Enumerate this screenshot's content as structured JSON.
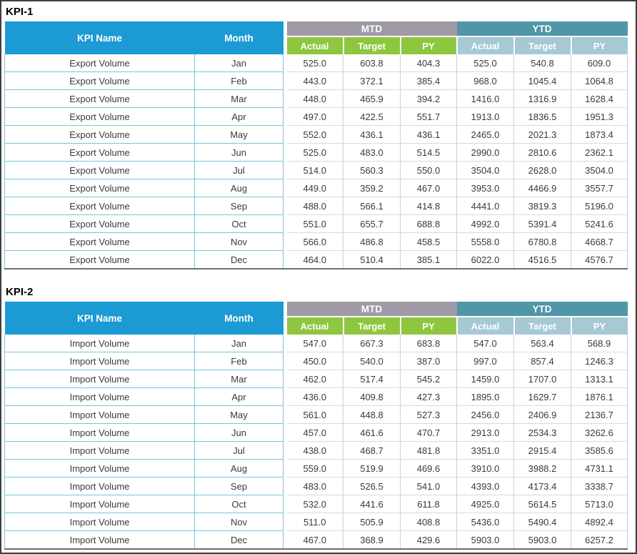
{
  "colors": {
    "header_blue": "#1b9ad3",
    "mtd_band": "#a099a6",
    "mtd_subheader_green": "#8ec63f",
    "ytd_band": "#4f96a8",
    "ytd_subheader_lightblue": "#a6c9d4",
    "grid_teal": "#74c6d9"
  },
  "tables": [
    {
      "title": "KPI-1",
      "header": {
        "kpi_name": "KPI Name",
        "month": "Month",
        "mtd": "MTD",
        "ytd": "YTD",
        "mtd_sub": [
          "Actual",
          "Target",
          "PY"
        ],
        "ytd_sub": [
          "Actual",
          "Target",
          "PY"
        ]
      },
      "rows": [
        {
          "kpi": "Export Volume",
          "month": "Jan",
          "mtd": [
            "525.0",
            "603.8",
            "404.3"
          ],
          "ytd": [
            "525.0",
            "540.8",
            "609.0"
          ]
        },
        {
          "kpi": "Export Volume",
          "month": "Feb",
          "mtd": [
            "443.0",
            "372.1",
            "385.4"
          ],
          "ytd": [
            "968.0",
            "1045.4",
            "1064.8"
          ]
        },
        {
          "kpi": "Export Volume",
          "month": "Mar",
          "mtd": [
            "448.0",
            "465.9",
            "394.2"
          ],
          "ytd": [
            "1416.0",
            "1316.9",
            "1628.4"
          ]
        },
        {
          "kpi": "Export Volume",
          "month": "Apr",
          "mtd": [
            "497.0",
            "422.5",
            "551.7"
          ],
          "ytd": [
            "1913.0",
            "1836.5",
            "1951.3"
          ]
        },
        {
          "kpi": "Export Volume",
          "month": "May",
          "mtd": [
            "552.0",
            "436.1",
            "436.1"
          ],
          "ytd": [
            "2465.0",
            "2021.3",
            "1873.4"
          ]
        },
        {
          "kpi": "Export Volume",
          "month": "Jun",
          "mtd": [
            "525.0",
            "483.0",
            "514.5"
          ],
          "ytd": [
            "2990.0",
            "2810.6",
            "2362.1"
          ]
        },
        {
          "kpi": "Export Volume",
          "month": "Jul",
          "mtd": [
            "514.0",
            "560.3",
            "550.0"
          ],
          "ytd": [
            "3504.0",
            "2628.0",
            "3504.0"
          ]
        },
        {
          "kpi": "Export Volume",
          "month": "Aug",
          "mtd": [
            "449.0",
            "359.2",
            "467.0"
          ],
          "ytd": [
            "3953.0",
            "4466.9",
            "3557.7"
          ]
        },
        {
          "kpi": "Export Volume",
          "month": "Sep",
          "mtd": [
            "488.0",
            "566.1",
            "414.8"
          ],
          "ytd": [
            "4441.0",
            "3819.3",
            "5196.0"
          ]
        },
        {
          "kpi": "Export Volume",
          "month": "Oct",
          "mtd": [
            "551.0",
            "655.7",
            "688.8"
          ],
          "ytd": [
            "4992.0",
            "5391.4",
            "5241.6"
          ]
        },
        {
          "kpi": "Export Volume",
          "month": "Nov",
          "mtd": [
            "566.0",
            "486.8",
            "458.5"
          ],
          "ytd": [
            "5558.0",
            "6780.8",
            "4668.7"
          ]
        },
        {
          "kpi": "Export Volume",
          "month": "Dec",
          "mtd": [
            "464.0",
            "510.4",
            "385.1"
          ],
          "ytd": [
            "6022.0",
            "4516.5",
            "4576.7"
          ]
        }
      ]
    },
    {
      "title": "KPI-2",
      "header": {
        "kpi_name": "KPI Name",
        "month": "Month",
        "mtd": "MTD",
        "ytd": "YTD",
        "mtd_sub": [
          "Actual",
          "Target",
          "PY"
        ],
        "ytd_sub": [
          "Actual",
          "Target",
          "PY"
        ]
      },
      "rows": [
        {
          "kpi": "Import Volume",
          "month": "Jan",
          "mtd": [
            "547.0",
            "667.3",
            "683.8"
          ],
          "ytd": [
            "547.0",
            "563.4",
            "568.9"
          ]
        },
        {
          "kpi": "Import Volume",
          "month": "Feb",
          "mtd": [
            "450.0",
            "540.0",
            "387.0"
          ],
          "ytd": [
            "997.0",
            "857.4",
            "1246.3"
          ]
        },
        {
          "kpi": "Import Volume",
          "month": "Mar",
          "mtd": [
            "462.0",
            "517.4",
            "545.2"
          ],
          "ytd": [
            "1459.0",
            "1707.0",
            "1313.1"
          ]
        },
        {
          "kpi": "Import Volume",
          "month": "Apr",
          "mtd": [
            "436.0",
            "409.8",
            "427.3"
          ],
          "ytd": [
            "1895.0",
            "1629.7",
            "1876.1"
          ]
        },
        {
          "kpi": "Import Volume",
          "month": "May",
          "mtd": [
            "561.0",
            "448.8",
            "527.3"
          ],
          "ytd": [
            "2456.0",
            "2406.9",
            "2136.7"
          ]
        },
        {
          "kpi": "Import Volume",
          "month": "Jun",
          "mtd": [
            "457.0",
            "461.6",
            "470.7"
          ],
          "ytd": [
            "2913.0",
            "2534.3",
            "3262.6"
          ]
        },
        {
          "kpi": "Import Volume",
          "month": "Jul",
          "mtd": [
            "438.0",
            "468.7",
            "481.8"
          ],
          "ytd": [
            "3351.0",
            "2915.4",
            "3585.6"
          ]
        },
        {
          "kpi": "Import Volume",
          "month": "Aug",
          "mtd": [
            "559.0",
            "519.9",
            "469.6"
          ],
          "ytd": [
            "3910.0",
            "3988.2",
            "4731.1"
          ]
        },
        {
          "kpi": "Import Volume",
          "month": "Sep",
          "mtd": [
            "483.0",
            "526.5",
            "541.0"
          ],
          "ytd": [
            "4393.0",
            "4173.4",
            "3338.7"
          ]
        },
        {
          "kpi": "Import Volume",
          "month": "Oct",
          "mtd": [
            "532.0",
            "441.6",
            "611.8"
          ],
          "ytd": [
            "4925.0",
            "5614.5",
            "5713.0"
          ]
        },
        {
          "kpi": "Import Volume",
          "month": "Nov",
          "mtd": [
            "511.0",
            "505.9",
            "408.8"
          ],
          "ytd": [
            "5436.0",
            "5490.4",
            "4892.4"
          ]
        },
        {
          "kpi": "Import Volume",
          "month": "Dec",
          "mtd": [
            "467.0",
            "368.9",
            "429.6"
          ],
          "ytd": [
            "5903.0",
            "5903.0",
            "6257.2"
          ]
        }
      ]
    }
  ]
}
